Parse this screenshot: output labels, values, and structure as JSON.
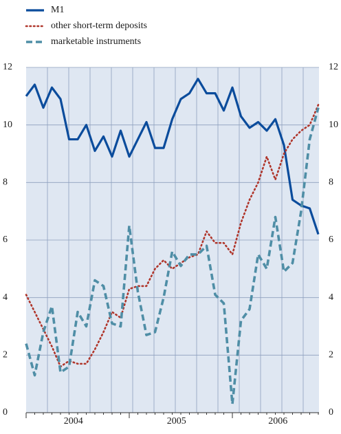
{
  "chart_data": {
    "type": "line",
    "series": [
      {
        "name": "M1",
        "color": "#0b4c9c",
        "style": "solid",
        "values": [
          11.0,
          11.4,
          10.6,
          11.3,
          10.9,
          9.5,
          9.5,
          10.0,
          9.1,
          9.6,
          8.9,
          9.8,
          8.9,
          9.5,
          10.1,
          9.2,
          9.2,
          10.2,
          10.9,
          11.1,
          11.6,
          11.1,
          11.1,
          10.5,
          11.3,
          10.3,
          9.9,
          10.1,
          9.8,
          10.2,
          9.3,
          7.4,
          7.2,
          7.1,
          6.2
        ]
      },
      {
        "name": "other short-term deposits",
        "color": "#b0362b",
        "style": "dotted",
        "values": [
          4.1,
          3.5,
          2.9,
          2.3,
          1.6,
          1.8,
          1.7,
          1.7,
          2.2,
          2.8,
          3.5,
          3.3,
          4.3,
          4.4,
          4.4,
          5.0,
          5.3,
          5.0,
          5.2,
          5.4,
          5.5,
          6.3,
          5.9,
          5.9,
          5.5,
          6.6,
          7.4,
          8.0,
          8.9,
          8.1,
          9.0,
          9.5,
          9.8,
          10.0,
          10.7
        ]
      },
      {
        "name": "marketable instruments",
        "color": "#4f8ea6",
        "style": "dashed",
        "values": [
          2.4,
          1.3,
          2.8,
          3.7,
          1.4,
          1.6,
          3.5,
          3.0,
          4.6,
          4.4,
          3.1,
          3.0,
          6.5,
          4.2,
          2.7,
          2.8,
          4.0,
          5.6,
          5.1,
          5.5,
          5.5,
          5.8,
          4.1,
          3.8,
          0.3,
          3.2,
          3.6,
          5.5,
          5.0,
          6.8,
          4.9,
          5.2,
          7.0,
          9.5,
          10.6
        ]
      }
    ],
    "year_labels": [
      "2004",
      "2005",
      "2006"
    ],
    "ylim": [
      0,
      12
    ],
    "yticks": [
      0,
      2,
      4,
      6,
      8,
      10,
      12
    ],
    "y2ticks": [
      0,
      2,
      4,
      6,
      8,
      10,
      12
    ],
    "grid": true
  }
}
